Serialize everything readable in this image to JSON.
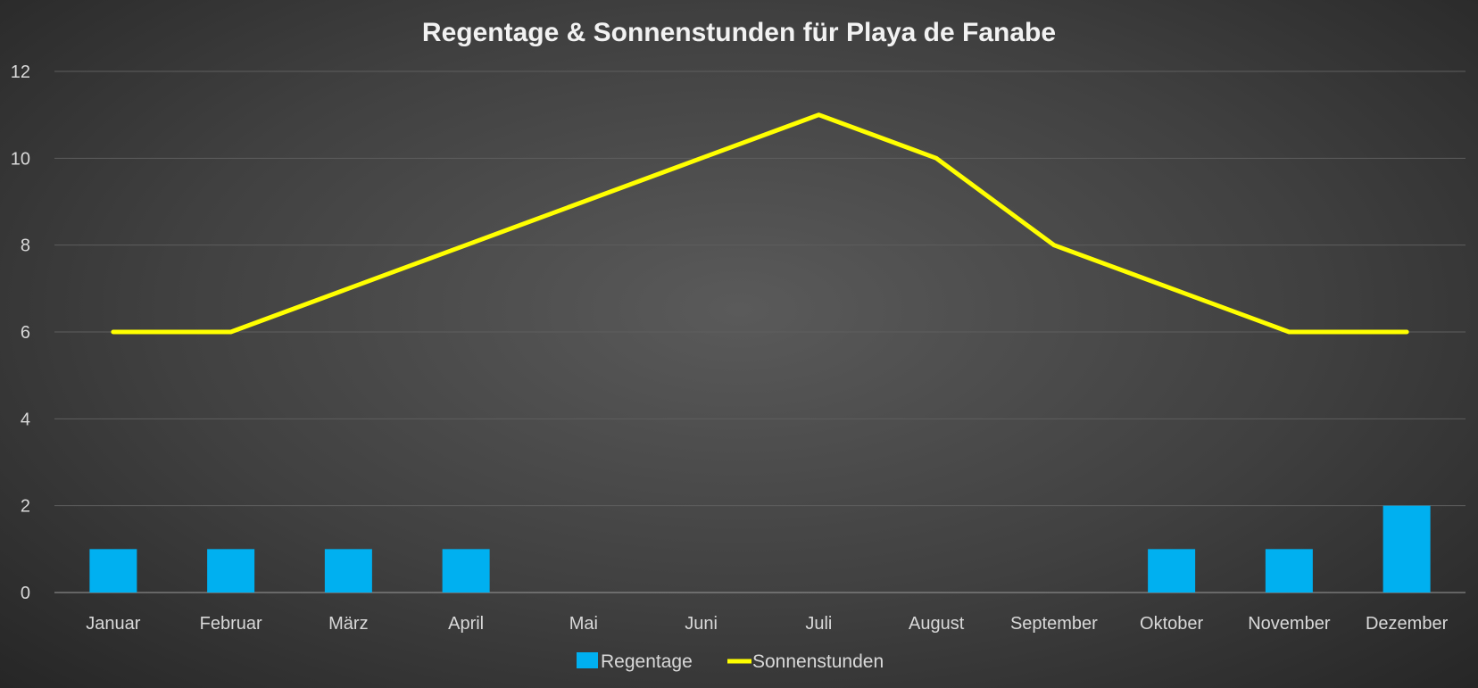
{
  "chart_data": {
    "type": "bar+line",
    "title": "Regentage & Sonnenstunden für Playa de Fanabe",
    "categories": [
      "Januar",
      "Februar",
      "März",
      "April",
      "Mai",
      "Juni",
      "Juli",
      "August",
      "September",
      "Oktober",
      "November",
      "Dezember"
    ],
    "series": [
      {
        "name": "Regentage",
        "type": "bar",
        "color": "#00b0f0",
        "values": [
          1,
          1,
          1,
          1,
          0,
          0,
          0,
          0,
          0,
          1,
          1,
          2
        ]
      },
      {
        "name": "Sonnenstunden",
        "type": "line",
        "color": "#ffff00",
        "values": [
          6,
          6,
          7,
          8,
          9,
          10,
          11,
          10,
          8,
          7,
          6,
          6
        ]
      }
    ],
    "ylim": [
      0,
      12
    ],
    "yticks": [
      "0",
      "2",
      "4",
      "6",
      "8",
      "10",
      "12"
    ],
    "grid": true,
    "legend": "bottom"
  }
}
